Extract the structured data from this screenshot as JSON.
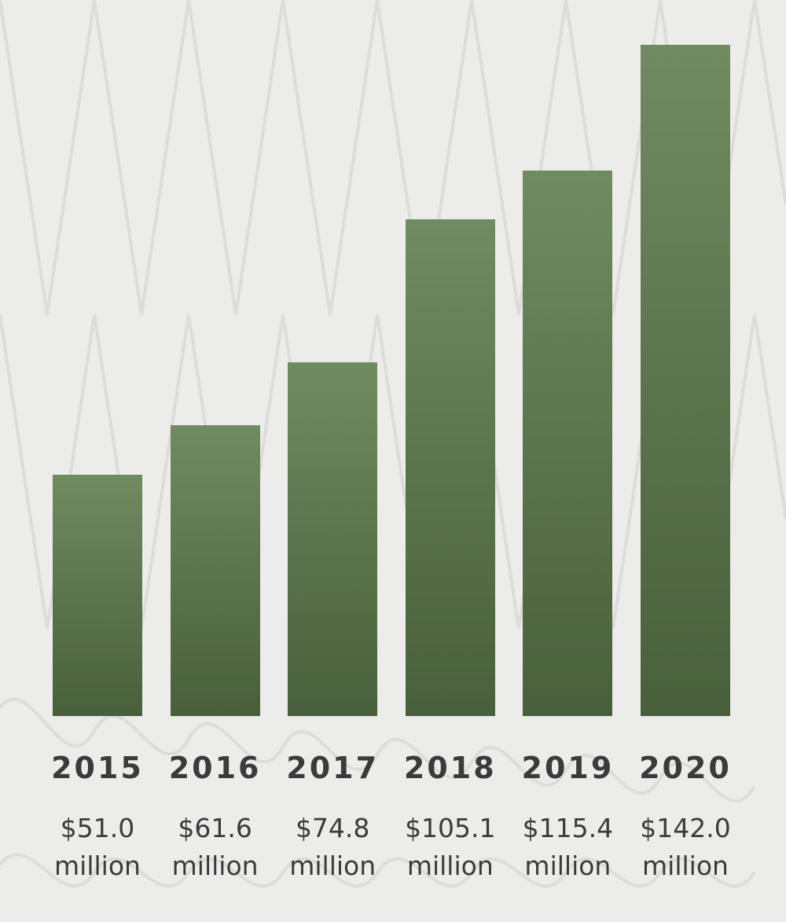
{
  "chart_data": {
    "type": "bar",
    "categories": [
      "2015",
      "2016",
      "2017",
      "2018",
      "2019",
      "2020"
    ],
    "values": [
      51.0,
      61.6,
      74.8,
      105.1,
      115.4,
      142.0
    ],
    "value_labels": [
      "$51.0 million",
      "$61.6 million",
      "$74.8 million",
      "$105.1 million",
      "$115.4 million",
      "$142.0 million"
    ],
    "color": "#5d7a4c"
  }
}
